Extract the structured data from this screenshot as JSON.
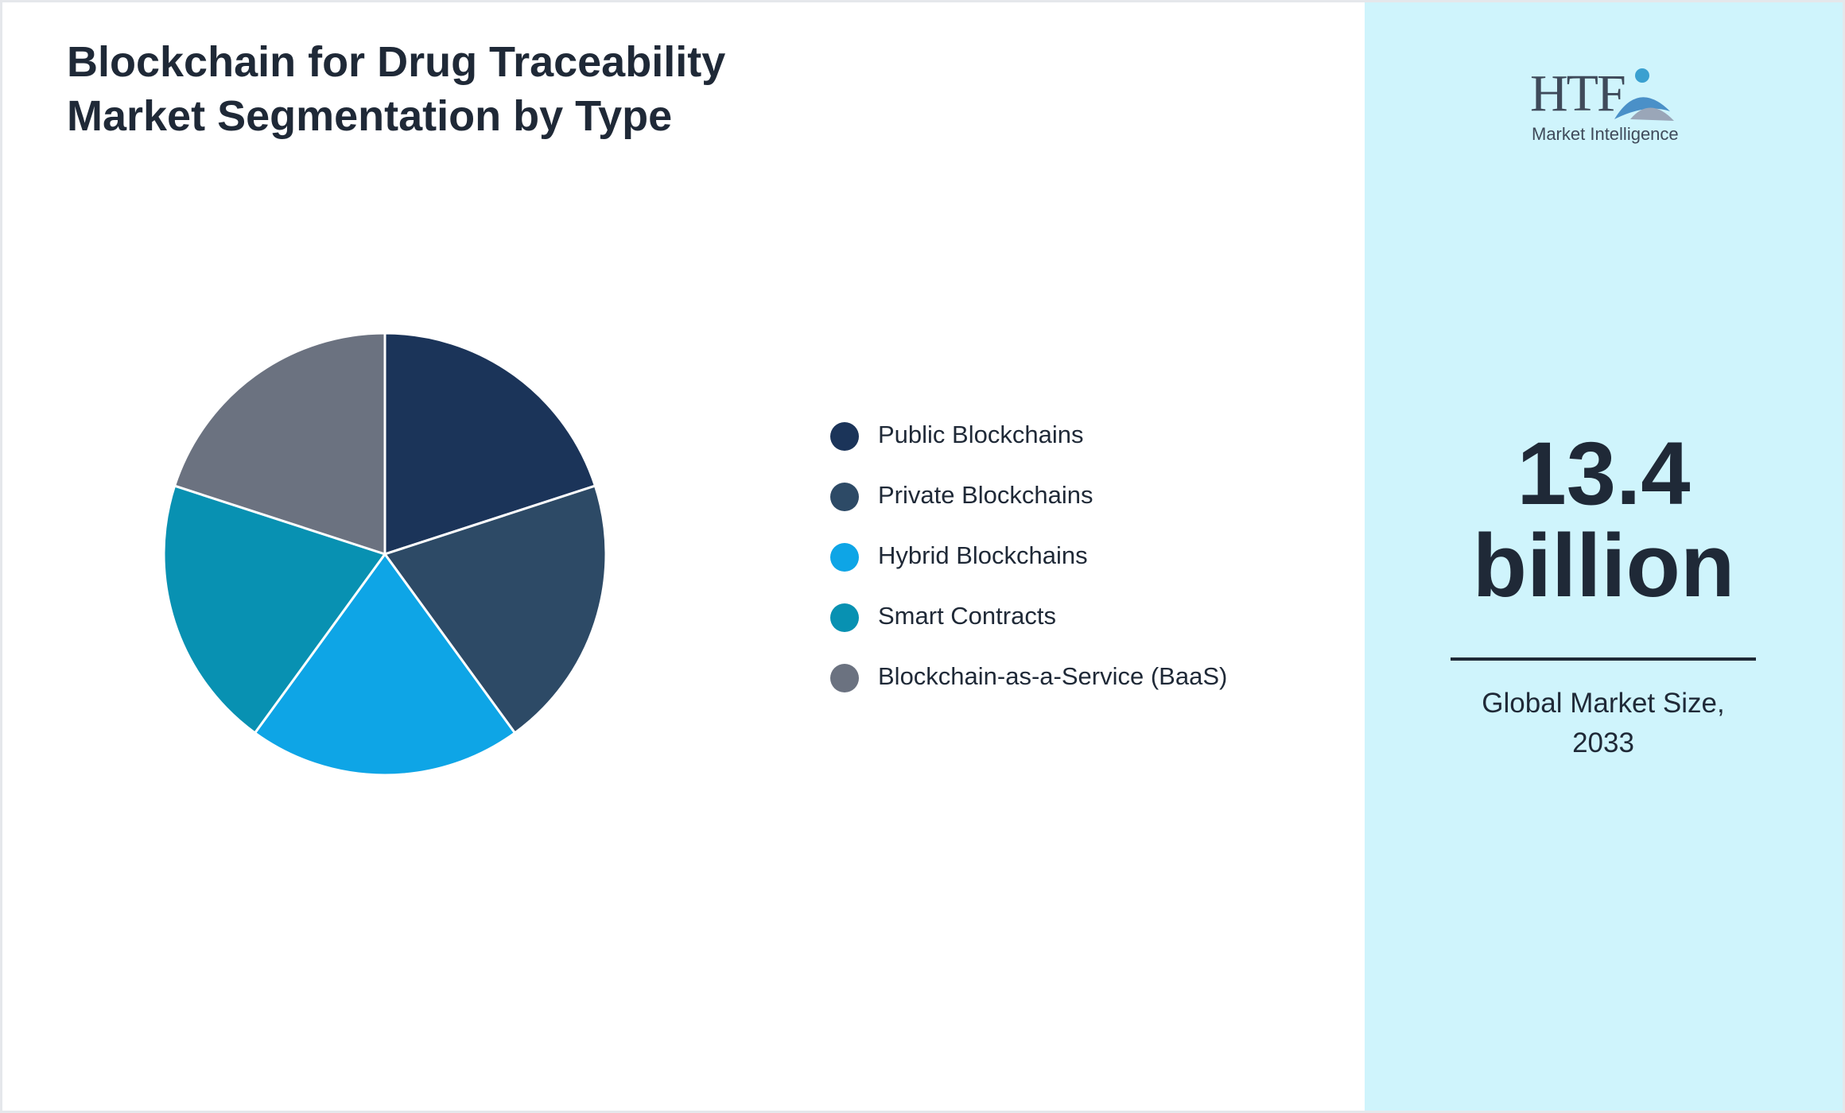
{
  "chart_data": {
    "type": "pie",
    "title": [
      "Blockchain for Drug Traceability",
      "Market Segmentation by Type"
    ],
    "categories": [
      "Public Blockchains",
      "Private Blockchains",
      "Hybrid Blockchains",
      "Smart Contracts",
      "Blockchain-as-a-Service (BaaS)"
    ],
    "values": [
      20,
      20,
      20,
      20,
      20
    ],
    "colors": [
      "#1b3459",
      "#2d4a66",
      "#0ea5e6",
      "#0891b2",
      "#6b7280"
    ],
    "legend": "right"
  },
  "side_panel": {
    "logo": {
      "mark": "HTF",
      "text": "Market Intelligence"
    },
    "value": "13.4",
    "unit": "billion",
    "caption": "Global Market Size, 2033"
  }
}
